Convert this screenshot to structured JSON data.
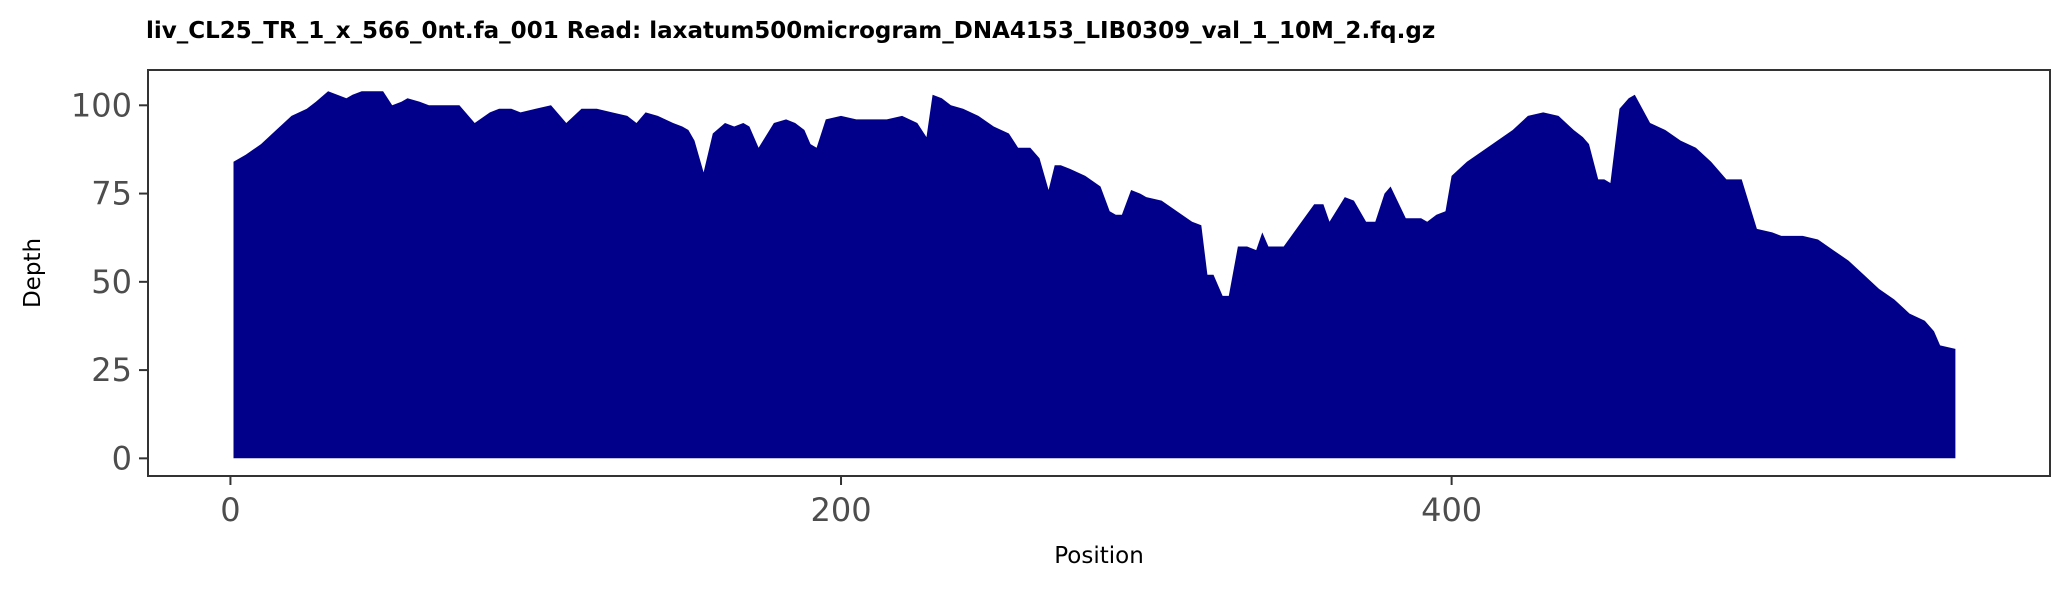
{
  "chart_data": {
    "type": "area",
    "title": "liv_CL25_TR_1_x_566_0nt.fa_001   Read: laxatum500microgram_DNA4153_LIB0309_val_1_10M_2.fq.gz",
    "xlabel": "Position",
    "ylabel": "Depth",
    "xlim": [
      -27,
      596
    ],
    "ylim": [
      -5,
      110
    ],
    "xticks": [
      0,
      200,
      400
    ],
    "yticks": [
      0,
      25,
      50,
      75,
      100
    ],
    "grid": false,
    "fill_color": "#00008B",
    "series": [
      {
        "x": [
          1,
          5,
          10,
          15,
          20,
          25,
          28,
          32,
          35,
          38,
          40,
          43,
          47,
          50,
          53,
          56,
          58,
          62,
          65,
          70,
          75,
          80,
          85,
          88,
          90,
          92,
          95,
          100,
          105,
          110,
          115,
          120,
          125,
          130,
          133,
          136,
          140,
          145,
          148,
          150,
          152,
          155,
          158,
          162,
          165,
          168,
          170,
          173,
          178,
          182,
          185,
          188,
          190,
          192,
          195,
          200,
          205,
          210,
          215,
          220,
          225,
          228,
          230,
          233,
          236,
          240,
          245,
          250,
          255,
          258,
          262,
          265,
          268,
          270,
          272,
          275,
          280,
          285,
          288,
          290,
          292,
          295,
          298,
          300,
          305,
          310,
          315,
          318,
          320,
          322,
          325,
          327,
          330,
          333,
          336,
          338,
          340,
          345,
          350,
          355,
          358,
          360,
          365,
          368,
          372,
          375,
          378,
          380,
          385,
          390,
          392,
          395,
          398,
          400,
          405,
          410,
          415,
          420,
          425,
          430,
          435,
          440,
          443,
          445,
          448,
          450,
          452,
          455,
          458,
          460,
          465,
          470,
          475,
          480,
          485,
          490,
          495,
          500,
          505,
          508,
          510,
          515,
          520,
          525,
          530,
          535,
          540,
          545,
          550,
          555,
          558,
          560,
          565
        ],
        "values": [
          84,
          86,
          89,
          93,
          97,
          99,
          101,
          104,
          103,
          102,
          103,
          104,
          104,
          104,
          100,
          101,
          102,
          101,
          100,
          100,
          100,
          95,
          98,
          99,
          99,
          99,
          98,
          99,
          100,
          95,
          99,
          99,
          98,
          97,
          95,
          98,
          97,
          95,
          94,
          93,
          90,
          81,
          92,
          95,
          94,
          95,
          94,
          88,
          95,
          96,
          95,
          93,
          89,
          88,
          96,
          97,
          96,
          96,
          96,
          97,
          95,
          91,
          103,
          102,
          100,
          99,
          97,
          94,
          92,
          88,
          88,
          85,
          76,
          83,
          83,
          82,
          80,
          77,
          70,
          69,
          69,
          76,
          75,
          74,
          73,
          70,
          67,
          66,
          52,
          52,
          46,
          46,
          60,
          60,
          59,
          64,
          60,
          60,
          66,
          72,
          72,
          67,
          74,
          73,
          67,
          67,
          75,
          77,
          68,
          68,
          67,
          69,
          70,
          80,
          84,
          87,
          90,
          93,
          97,
          98,
          97,
          93,
          91,
          89,
          79,
          79,
          78,
          99,
          102,
          103,
          95,
          93,
          90,
          88,
          84,
          79,
          79,
          65,
          64,
          63,
          63,
          63,
          62,
          59,
          56,
          52,
          48,
          45,
          41,
          39,
          36,
          32,
          31
        ]
      }
    ]
  }
}
